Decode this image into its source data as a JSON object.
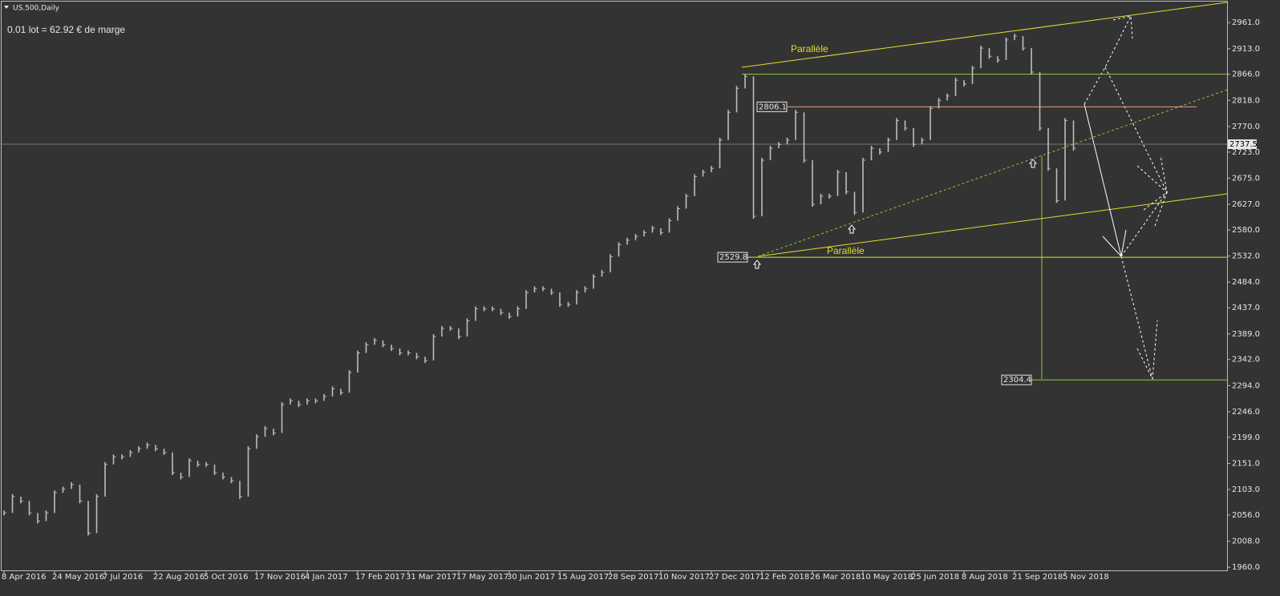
{
  "chart_data": {
    "type": "bar",
    "title": "US.500,Daily",
    "subtitle": "0.01 lot = 62.92 € de marge",
    "categories": [
      "8 Apr 2016",
      null,
      null,
      null,
      null,
      null,
      "24 May 2016",
      null,
      null,
      null,
      null,
      null,
      "7 Jul 2016",
      null,
      null,
      null,
      null,
      null,
      "22 Aug 2016",
      null,
      null,
      null,
      null,
      null,
      "5 Oct 2016",
      null,
      null,
      null,
      null,
      null,
      "17 Nov 2016",
      null,
      null,
      null,
      null,
      null,
      "4 Jan 2017",
      null,
      null,
      null,
      null,
      null,
      "17 Feb 2017",
      null,
      null,
      null,
      null,
      null,
      "31 Mar 2017",
      null,
      null,
      null,
      null,
      null,
      "17 May 2017",
      null,
      null,
      null,
      null,
      null,
      "30 Jun 2017",
      null,
      null,
      null,
      null,
      null,
      "15 Aug 2017",
      null,
      null,
      null,
      null,
      null,
      "28 Sep 2017",
      null,
      null,
      null,
      null,
      null,
      "10 Nov 2017",
      null,
      null,
      null,
      null,
      null,
      "27 Dec 2017",
      null,
      null,
      null,
      null,
      null,
      "12 Feb 2018",
      null,
      null,
      null,
      null,
      null,
      "26 Mar 2018",
      null,
      null,
      null,
      null,
      null,
      "10 May 2018",
      null,
      null,
      null,
      null,
      null,
      "25 Jun 2018",
      null,
      null,
      null,
      null,
      null,
      "8 Aug 2018",
      null,
      null,
      null,
      null,
      null,
      "21 Sep 2018",
      null,
      null,
      null,
      null,
      null,
      "5 Nov 2018",
      null
    ],
    "values": [
      2060,
      2090,
      2082,
      2060,
      2045,
      2060,
      2097,
      2104,
      2112,
      2082,
      2023,
      2090,
      2149,
      2163,
      2163,
      2171,
      2178,
      2185,
      2178,
      2171,
      2134,
      2126,
      2156,
      2149,
      2149,
      2134,
      2126,
      2119,
      2090,
      2178,
      2200,
      2215,
      2207,
      2259,
      2266,
      2259,
      2266,
      2266,
      2274,
      2288,
      2281,
      2318,
      2354,
      2369,
      2377,
      2369,
      2362,
      2354,
      2354,
      2347,
      2340,
      2384,
      2399,
      2399,
      2384,
      2413,
      2435,
      2435,
      2435,
      2428,
      2421,
      2435,
      2465,
      2472,
      2472,
      2465,
      2443,
      2443,
      2465,
      2472,
      2494,
      2502,
      2531,
      2553,
      2561,
      2568,
      2575,
      2583,
      2575,
      2597,
      2619,
      2642,
      2678,
      2686,
      2693,
      2745,
      2796,
      2840,
      2862,
      2605,
      2708,
      2730,
      2737,
      2745,
      2796,
      2708,
      2627,
      2642,
      2642,
      2686,
      2650,
      2612,
      2708,
      2730,
      2723,
      2745,
      2781,
      2767,
      2737,
      2745,
      2803,
      2818,
      2826,
      2855,
      2848,
      2877,
      2914,
      2899,
      2892,
      2929,
      2936,
      2914,
      2870,
      2767,
      2693,
      2634,
      2781,
      2730
    ],
    "color": "#bdbdbd",
    "ylim": [
      1953,
      2998
    ],
    "yticks": [
      {
        "value": 2961,
        "label": "2961.0"
      },
      {
        "value": 2913,
        "label": "2913.0"
      },
      {
        "value": 2866,
        "label": "2866.0"
      },
      {
        "value": 2818,
        "label": "2818.0"
      },
      {
        "value": 2770,
        "label": "2770.0"
      },
      {
        "value": 2723,
        "label": "2723.0"
      },
      {
        "value": 2675,
        "label": "2675.0"
      },
      {
        "value": 2627,
        "label": "2627.0"
      },
      {
        "value": 2580,
        "label": "2580.0"
      },
      {
        "value": 2532,
        "label": "2532.0"
      },
      {
        "value": 2484,
        "label": "2484.0"
      },
      {
        "value": 2437,
        "label": "2437.0"
      },
      {
        "value": 2389,
        "label": "2389.0"
      },
      {
        "value": 2342,
        "label": "2342.0"
      },
      {
        "value": 2294,
        "label": "2294.0"
      },
      {
        "value": 2246,
        "label": "2246.0"
      },
      {
        "value": 2199,
        "label": "2199.0"
      },
      {
        "value": 2151,
        "label": "2151.0"
      },
      {
        "value": 2103,
        "label": "2103.0"
      },
      {
        "value": 2056,
        "label": "2056.0"
      },
      {
        "value": 2008,
        "label": "2008.0"
      },
      {
        "value": 1960,
        "label": "1960.0"
      }
    ],
    "current_price": 2737.5,
    "levels": [
      {
        "value": 2866,
        "color": "#8ccc3a",
        "show_label": false
      },
      {
        "value": 2806.1,
        "color": "#e0a07a",
        "show_label": true
      },
      {
        "value": 2529.8,
        "color": "#e6dc2e",
        "show_label": true
      },
      {
        "value": 2304.4,
        "color": "#8ccc3a",
        "show_label": true
      }
    ],
    "annotations": [
      "Parallèle",
      "Parallèle"
    ]
  }
}
